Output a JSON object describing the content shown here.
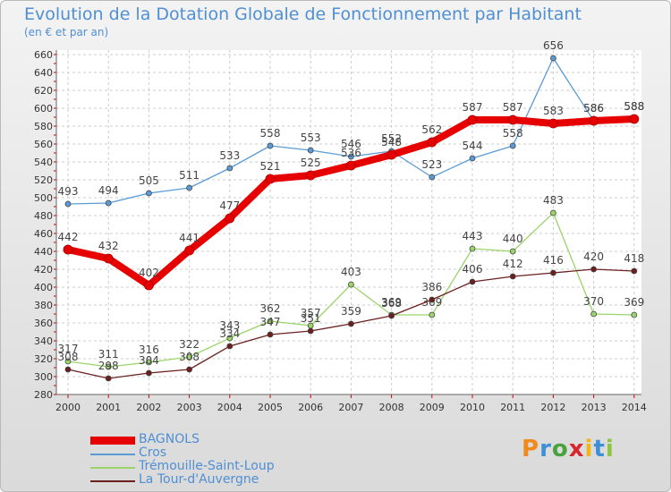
{
  "header": {
    "title": "Evolution de la Dotation Globale de Fonctionnement par Habitant",
    "subtitle": "(en € et par an)"
  },
  "logo": {
    "letters": [
      "P",
      "r",
      "o",
      "x",
      "i",
      "t",
      "i"
    ],
    "colors": [
      "#f08a1c",
      "#3d8fd6",
      "#4aa33a",
      "#d9262d",
      "#f2b416",
      "#3d8fd6",
      "#8cc63f"
    ]
  },
  "chart_data": {
    "type": "line",
    "x": [
      2000,
      2001,
      2002,
      2003,
      2004,
      2005,
      2006,
      2007,
      2008,
      2009,
      2010,
      2011,
      2012,
      2013,
      2014
    ],
    "ylim": [
      280,
      660
    ],
    "yticks": [
      280,
      300,
      320,
      340,
      360,
      380,
      400,
      420,
      440,
      460,
      480,
      500,
      520,
      540,
      560,
      580,
      600,
      620,
      640,
      660
    ],
    "grid": true,
    "legend_position": "bottom-left",
    "title": "Evolution de la Dotation Globale de Fonctionnement par Habitant",
    "ylabel": "(en € et par an)",
    "series": [
      {
        "name": "Trémouille-Saint-Loup",
        "color": "#9ad46a",
        "values": [
          317,
          311,
          316,
          322,
          343,
          362,
          357,
          403,
          369,
          369,
          443,
          440,
          483,
          370,
          369
        ]
      },
      {
        "name": "La Tour-d'Auvergne",
        "color": "#6b1f1f",
        "values": [
          308,
          298,
          304,
          308,
          334,
          347,
          351,
          359,
          368,
          386,
          406,
          412,
          416,
          420,
          418
        ]
      },
      {
        "name": "Cros",
        "color": "#5a9bd5",
        "values": [
          493,
          494,
          505,
          511,
          533,
          558,
          553,
          546,
          552,
          523,
          544,
          558,
          656,
          586,
          588
        ]
      },
      {
        "name": "BAGNOLS",
        "color": "#e60000",
        "values": [
          442,
          432,
          402,
          441,
          477,
          521,
          525,
          536,
          548,
          562,
          587,
          587,
          583,
          586,
          588
        ]
      }
    ],
    "legend": [
      "BAGNOLS",
      "Cros",
      "Trémouille-Saint-Loup",
      "La Tour-d'Auvergne"
    ]
  }
}
